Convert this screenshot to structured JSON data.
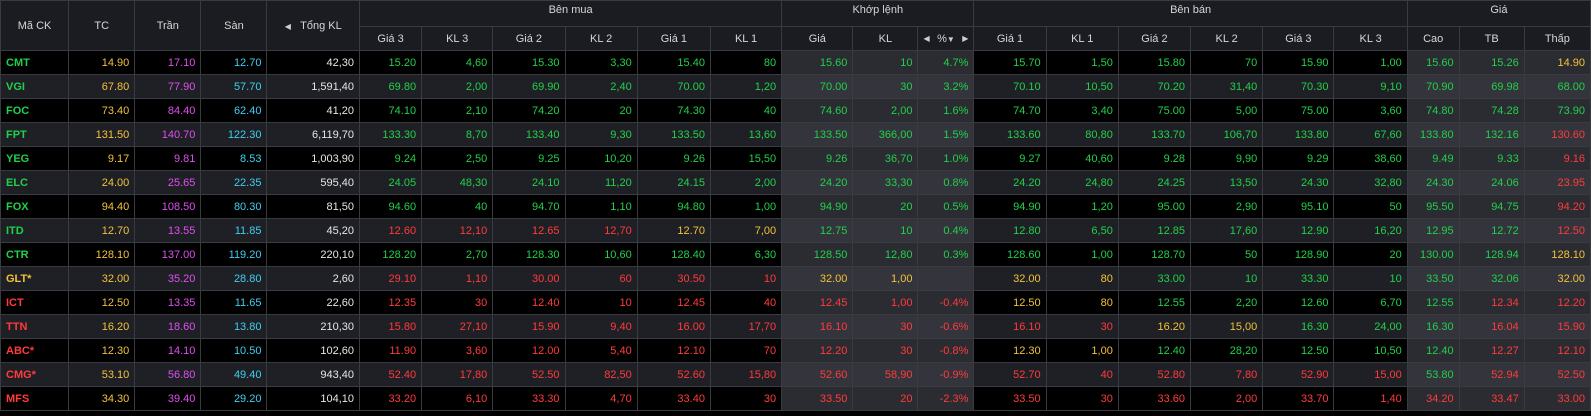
{
  "colors": {
    "up": "#21d04a",
    "down": "#ff3b3b",
    "ref": "#f2c23a",
    "ceil": "#e04ef0",
    "floor": "#3ecff0",
    "white": "#e6e6e6"
  },
  "header": {
    "symbol": "Mã CK",
    "ref": "TC",
    "ceil": "Trần",
    "floor": "Sàn",
    "total_vol": "Tổng KL",
    "buy_group": "Bên mua",
    "match_group": "Khớp lệnh",
    "sell_group": "Bên bán",
    "price_group": "Giá",
    "bid3": "Giá 3",
    "bidvol3": "KL 3",
    "bid2": "Giá 2",
    "bidvol2": "KL 2",
    "bid1": "Giá 1",
    "bidvol1": "KL 1",
    "match_price": "Giá",
    "match_vol": "KL",
    "match_pct": "%",
    "ask1": "Giá 1",
    "askvol1": "KL 1",
    "ask2": "Giá 2",
    "askvol2": "KL 2",
    "ask3": "Giá 3",
    "askvol3": "KL 3",
    "high": "Cao",
    "avg": "TB",
    "low": "Thấp",
    "arrow_left": "◀",
    "arrow_right": "▶",
    "arrow_down": "▼"
  },
  "rows": [
    {
      "sym": "CMT",
      "tc": "14.90",
      "tran": "17.10",
      "san": "12.70",
      "tkl": "42,30",
      "g3": "15.20",
      "k3": "4,60",
      "g2": "15.30",
      "k2": "3,30",
      "g1": "15.40",
      "k1": "80",
      "mg": "15.60",
      "mk": "10",
      "pct": "4.7%",
      "ag1": "15.70",
      "ak1": "1,50",
      "ag2": "15.80",
      "ak2": "70",
      "ag3": "15.90",
      "ak3": "1,00",
      "cao": "15.60",
      "tb": "15.26",
      "thap": "14.90",
      "c": {
        "sym": "up",
        "g3": "up",
        "k3": "up",
        "g2": "up",
        "k2": "up",
        "g1": "up",
        "k1": "up",
        "mg": "up",
        "mk": "up",
        "pct": "up",
        "ag1": "up",
        "ak1": "up",
        "ag2": "up",
        "ak2": "up",
        "ag3": "up",
        "ak3": "up",
        "cao": "up",
        "tb": "up",
        "thap": "ref"
      }
    },
    {
      "sym": "VGI",
      "tc": "67.80",
      "tran": "77.90",
      "san": "57.70",
      "tkl": "1,591,40",
      "g3": "69.80",
      "k3": "2,00",
      "g2": "69.90",
      "k2": "2,40",
      "g1": "70.00",
      "k1": "1,20",
      "mg": "70.00",
      "mk": "30",
      "pct": "3.2%",
      "ag1": "70.10",
      "ak1": "10,50",
      "ag2": "70.20",
      "ak2": "31,40",
      "ag3": "70.30",
      "ak3": "9,10",
      "cao": "70.90",
      "tb": "69.98",
      "thap": "68.00",
      "c": {
        "sym": "up",
        "g3": "up",
        "k3": "up",
        "g2": "up",
        "k2": "up",
        "g1": "up",
        "k1": "up",
        "mg": "up",
        "mk": "up",
        "pct": "up",
        "ag1": "up",
        "ak1": "up",
        "ag2": "up",
        "ak2": "up",
        "ag3": "up",
        "ak3": "up",
        "cao": "up",
        "tb": "up",
        "thap": "up"
      }
    },
    {
      "sym": "FOC",
      "tc": "73.40",
      "tran": "84.40",
      "san": "62.40",
      "tkl": "41,20",
      "g3": "74.10",
      "k3": "2,10",
      "g2": "74.20",
      "k2": "20",
      "g1": "74.30",
      "k1": "40",
      "mg": "74.60",
      "mk": "2,00",
      "pct": "1.6%",
      "ag1": "74.70",
      "ak1": "3,40",
      "ag2": "75.00",
      "ak2": "5,00",
      "ag3": "75.00",
      "ak3": "3,60",
      "cao": "74.80",
      "tb": "74.28",
      "thap": "73.90",
      "c": {
        "sym": "up",
        "g3": "up",
        "k3": "up",
        "g2": "up",
        "k2": "up",
        "g1": "up",
        "k1": "up",
        "mg": "up",
        "mk": "up",
        "pct": "up",
        "ag1": "up",
        "ak1": "up",
        "ag2": "up",
        "ak2": "up",
        "ag3": "up",
        "ak3": "up",
        "cao": "up",
        "tb": "up",
        "thap": "up"
      }
    },
    {
      "sym": "FPT",
      "tc": "131.50",
      "tran": "140.70",
      "san": "122.30",
      "tkl": "6,119,70",
      "g3": "133.30",
      "k3": "8,70",
      "g2": "133.40",
      "k2": "9,30",
      "g1": "133.50",
      "k1": "13,60",
      "mg": "133.50",
      "mk": "366,00",
      "pct": "1.5%",
      "ag1": "133.60",
      "ak1": "80,80",
      "ag2": "133.70",
      "ak2": "106,70",
      "ag3": "133.80",
      "ak3": "67,60",
      "cao": "133.80",
      "tb": "132.16",
      "thap": "130.60",
      "c": {
        "sym": "up",
        "g3": "up",
        "k3": "up",
        "g2": "up",
        "k2": "up",
        "g1": "up",
        "k1": "up",
        "mg": "up",
        "mk": "up",
        "pct": "up",
        "ag1": "up",
        "ak1": "up",
        "ag2": "up",
        "ak2": "up",
        "ag3": "up",
        "ak3": "up",
        "cao": "up",
        "tb": "up",
        "thap": "down"
      }
    },
    {
      "sym": "YEG",
      "tc": "9.17",
      "tran": "9.81",
      "san": "8.53",
      "tkl": "1,003,90",
      "g3": "9.24",
      "k3": "2,50",
      "g2": "9.25",
      "k2": "10,20",
      "g1": "9.26",
      "k1": "15,50",
      "mg": "9.26",
      "mk": "36,70",
      "pct": "1.0%",
      "ag1": "9.27",
      "ak1": "40,60",
      "ag2": "9.28",
      "ak2": "9,90",
      "ag3": "9.29",
      "ak3": "38,60",
      "cao": "9.49",
      "tb": "9.33",
      "thap": "9.16",
      "c": {
        "sym": "up",
        "g3": "up",
        "k3": "up",
        "g2": "up",
        "k2": "up",
        "g1": "up",
        "k1": "up",
        "mg": "up",
        "mk": "up",
        "pct": "up",
        "ag1": "up",
        "ak1": "up",
        "ag2": "up",
        "ak2": "up",
        "ag3": "up",
        "ak3": "up",
        "cao": "up",
        "tb": "up",
        "thap": "down"
      }
    },
    {
      "sym": "ELC",
      "tc": "24.00",
      "tran": "25.65",
      "san": "22.35",
      "tkl": "595,40",
      "g3": "24.05",
      "k3": "48,30",
      "g2": "24.10",
      "k2": "11,20",
      "g1": "24.15",
      "k1": "2,00",
      "mg": "24.20",
      "mk": "33,30",
      "pct": "0.8%",
      "ag1": "24.20",
      "ak1": "24,80",
      "ag2": "24.25",
      "ak2": "13,50",
      "ag3": "24.30",
      "ak3": "32,80",
      "cao": "24.30",
      "tb": "24.06",
      "thap": "23.95",
      "c": {
        "sym": "up",
        "g3": "up",
        "k3": "up",
        "g2": "up",
        "k2": "up",
        "g1": "up",
        "k1": "up",
        "mg": "up",
        "mk": "up",
        "pct": "up",
        "ag1": "up",
        "ak1": "up",
        "ag2": "up",
        "ak2": "up",
        "ag3": "up",
        "ak3": "up",
        "cao": "up",
        "tb": "up",
        "thap": "down"
      }
    },
    {
      "sym": "FOX",
      "tc": "94.40",
      "tran": "108.50",
      "san": "80.30",
      "tkl": "81,50",
      "g3": "94.60",
      "k3": "40",
      "g2": "94.70",
      "k2": "1,10",
      "g1": "94.80",
      "k1": "1,00",
      "mg": "94.90",
      "mk": "20",
      "pct": "0.5%",
      "ag1": "94.90",
      "ak1": "1,20",
      "ag2": "95.00",
      "ak2": "2,90",
      "ag3": "95.10",
      "ak3": "50",
      "cao": "95.50",
      "tb": "94.75",
      "thap": "94.20",
      "c": {
        "sym": "up",
        "g3": "up",
        "k3": "up",
        "g2": "up",
        "k2": "up",
        "g1": "up",
        "k1": "up",
        "mg": "up",
        "mk": "up",
        "pct": "up",
        "ag1": "up",
        "ak1": "up",
        "ag2": "up",
        "ak2": "up",
        "ag3": "up",
        "ak3": "up",
        "cao": "up",
        "tb": "up",
        "thap": "down"
      }
    },
    {
      "sym": "ITD",
      "tc": "12.70",
      "tran": "13.55",
      "san": "11.85",
      "tkl": "45,20",
      "g3": "12.60",
      "k3": "12,10",
      "g2": "12.65",
      "k2": "12,70",
      "g1": "12.70",
      "k1": "7,00",
      "mg": "12.75",
      "mk": "10",
      "pct": "0.4%",
      "ag1": "12.80",
      "ak1": "6,50",
      "ag2": "12.85",
      "ak2": "17,60",
      "ag3": "12.90",
      "ak3": "16,20",
      "cao": "12.95",
      "tb": "12.72",
      "thap": "12.50",
      "c": {
        "sym": "up",
        "g3": "down",
        "k3": "down",
        "g2": "down",
        "k2": "down",
        "g1": "ref",
        "k1": "ref",
        "mg": "up",
        "mk": "up",
        "pct": "up",
        "ag1": "up",
        "ak1": "up",
        "ag2": "up",
        "ak2": "up",
        "ag3": "up",
        "ak3": "up",
        "cao": "up",
        "tb": "up",
        "thap": "down"
      }
    },
    {
      "sym": "CTR",
      "tc": "128.10",
      "tran": "137.00",
      "san": "119.20",
      "tkl": "220,10",
      "g3": "128.20",
      "k3": "2,70",
      "g2": "128.30",
      "k2": "10,60",
      "g1": "128.40",
      "k1": "6,30",
      "mg": "128.50",
      "mk": "12,80",
      "pct": "0.3%",
      "ag1": "128.60",
      "ak1": "1,00",
      "ag2": "128.70",
      "ak2": "50",
      "ag3": "128.90",
      "ak3": "20",
      "cao": "130.00",
      "tb": "128.94",
      "thap": "128.10",
      "c": {
        "sym": "up",
        "g3": "up",
        "k3": "up",
        "g2": "up",
        "k2": "up",
        "g1": "up",
        "k1": "up",
        "mg": "up",
        "mk": "up",
        "pct": "up",
        "ag1": "up",
        "ak1": "up",
        "ag2": "up",
        "ak2": "up",
        "ag3": "up",
        "ak3": "up",
        "cao": "up",
        "tb": "up",
        "thap": "ref"
      }
    },
    {
      "sym": "GLT*",
      "tc": "32.00",
      "tran": "35.20",
      "san": "28.80",
      "tkl": "2,60",
      "g3": "29.10",
      "k3": "1,10",
      "g2": "30.00",
      "k2": "60",
      "g1": "30.50",
      "k1": "10",
      "mg": "32.00",
      "mk": "1,00",
      "pct": "",
      "ag1": "32.00",
      "ak1": "80",
      "ag2": "33.00",
      "ak2": "10",
      "ag3": "33.30",
      "ak3": "10",
      "cao": "33.50",
      "tb": "32.06",
      "thap": "32.00",
      "c": {
        "sym": "ref",
        "g3": "down",
        "k3": "down",
        "g2": "down",
        "k2": "down",
        "g1": "down",
        "k1": "down",
        "mg": "ref",
        "mk": "ref",
        "pct": "ref",
        "ag1": "ref",
        "ak1": "ref",
        "ag2": "up",
        "ak2": "up",
        "ag3": "up",
        "ak3": "up",
        "cao": "up",
        "tb": "up",
        "thap": "ref"
      }
    },
    {
      "sym": "ICT",
      "tc": "12.50",
      "tran": "13.35",
      "san": "11.65",
      "tkl": "22,60",
      "g3": "12.35",
      "k3": "30",
      "g2": "12.40",
      "k2": "10",
      "g1": "12.45",
      "k1": "40",
      "mg": "12.45",
      "mk": "1,00",
      "pct": "-0.4%",
      "ag1": "12.50",
      "ak1": "80",
      "ag2": "12.55",
      "ak2": "2,20",
      "ag3": "12.60",
      "ak3": "6,70",
      "cao": "12.55",
      "tb": "12.34",
      "thap": "12.20",
      "c": {
        "sym": "down",
        "g3": "down",
        "k3": "down",
        "g2": "down",
        "k2": "down",
        "g1": "down",
        "k1": "down",
        "mg": "down",
        "mk": "down",
        "pct": "down",
        "ag1": "ref",
        "ak1": "ref",
        "ag2": "up",
        "ak2": "up",
        "ag3": "up",
        "ak3": "up",
        "cao": "up",
        "tb": "down",
        "thap": "down"
      }
    },
    {
      "sym": "TTN",
      "tc": "16.20",
      "tran": "18.60",
      "san": "13.80",
      "tkl": "210,30",
      "g3": "15.80",
      "k3": "27,10",
      "g2": "15.90",
      "k2": "9,40",
      "g1": "16.00",
      "k1": "17,70",
      "mg": "16.10",
      "mk": "30",
      "pct": "-0.6%",
      "ag1": "16.10",
      "ak1": "30",
      "ag2": "16.20",
      "ak2": "15,00",
      "ag3": "16.30",
      "ak3": "24,00",
      "cao": "16.30",
      "tb": "16.04",
      "thap": "15.90",
      "c": {
        "sym": "down",
        "g3": "down",
        "k3": "down",
        "g2": "down",
        "k2": "down",
        "g1": "down",
        "k1": "down",
        "mg": "down",
        "mk": "down",
        "pct": "down",
        "ag1": "down",
        "ak1": "down",
        "ag2": "ref",
        "ak2": "ref",
        "ag3": "up",
        "ak3": "up",
        "cao": "up",
        "tb": "down",
        "thap": "down"
      }
    },
    {
      "sym": "ABC*",
      "tc": "12.30",
      "tran": "14.10",
      "san": "10.50",
      "tkl": "102,60",
      "g3": "11.90",
      "k3": "3,60",
      "g2": "12.00",
      "k2": "5,40",
      "g1": "12.10",
      "k1": "70",
      "mg": "12.20",
      "mk": "30",
      "pct": "-0.8%",
      "ag1": "12.30",
      "ak1": "1,00",
      "ag2": "12.40",
      "ak2": "28,20",
      "ag3": "12.50",
      "ak3": "10,50",
      "cao": "12.40",
      "tb": "12.27",
      "thap": "12.10",
      "c": {
        "sym": "down",
        "g3": "down",
        "k3": "down",
        "g2": "down",
        "k2": "down",
        "g1": "down",
        "k1": "down",
        "mg": "down",
        "mk": "down",
        "pct": "down",
        "ag1": "ref",
        "ak1": "ref",
        "ag2": "up",
        "ak2": "up",
        "ag3": "up",
        "ak3": "up",
        "cao": "up",
        "tb": "down",
        "thap": "down"
      }
    },
    {
      "sym": "CMG*",
      "tc": "53.10",
      "tran": "56.80",
      "san": "49.40",
      "tkl": "943,40",
      "g3": "52.40",
      "k3": "17,80",
      "g2": "52.50",
      "k2": "82,50",
      "g1": "52.60",
      "k1": "15,80",
      "mg": "52.60",
      "mk": "58,90",
      "pct": "-0.9%",
      "ag1": "52.70",
      "ak1": "40",
      "ag2": "52.80",
      "ak2": "7,80",
      "ag3": "52.90",
      "ak3": "15,00",
      "cao": "53.80",
      "tb": "52.94",
      "thap": "52.50",
      "c": {
        "sym": "down",
        "g3": "down",
        "k3": "down",
        "g2": "down",
        "k2": "down",
        "g1": "down",
        "k1": "down",
        "mg": "down",
        "mk": "down",
        "pct": "down",
        "ag1": "down",
        "ak1": "down",
        "ag2": "down",
        "ak2": "down",
        "ag3": "down",
        "ak3": "down",
        "cao": "up",
        "tb": "down",
        "thap": "down"
      }
    },
    {
      "sym": "MFS",
      "tc": "34.30",
      "tran": "39.40",
      "san": "29.20",
      "tkl": "104,10",
      "g3": "33.20",
      "k3": "6,10",
      "g2": "33.30",
      "k2": "4,70",
      "g1": "33.40",
      "k1": "30",
      "mg": "33.50",
      "mk": "20",
      "pct": "-2.3%",
      "ag1": "33.50",
      "ak1": "30",
      "ag2": "33.60",
      "ak2": "2,00",
      "ag3": "33.70",
      "ak3": "1,40",
      "cao": "34.20",
      "tb": "33.47",
      "thap": "33.00",
      "c": {
        "sym": "down",
        "g3": "down",
        "k3": "down",
        "g2": "down",
        "k2": "down",
        "g1": "down",
        "k1": "down",
        "mg": "down",
        "mk": "down",
        "pct": "down",
        "ag1": "down",
        "ak1": "down",
        "ag2": "down",
        "ak2": "down",
        "ag3": "down",
        "ak3": "down",
        "cao": "down",
        "tb": "down",
        "thap": "down"
      }
    }
  ]
}
